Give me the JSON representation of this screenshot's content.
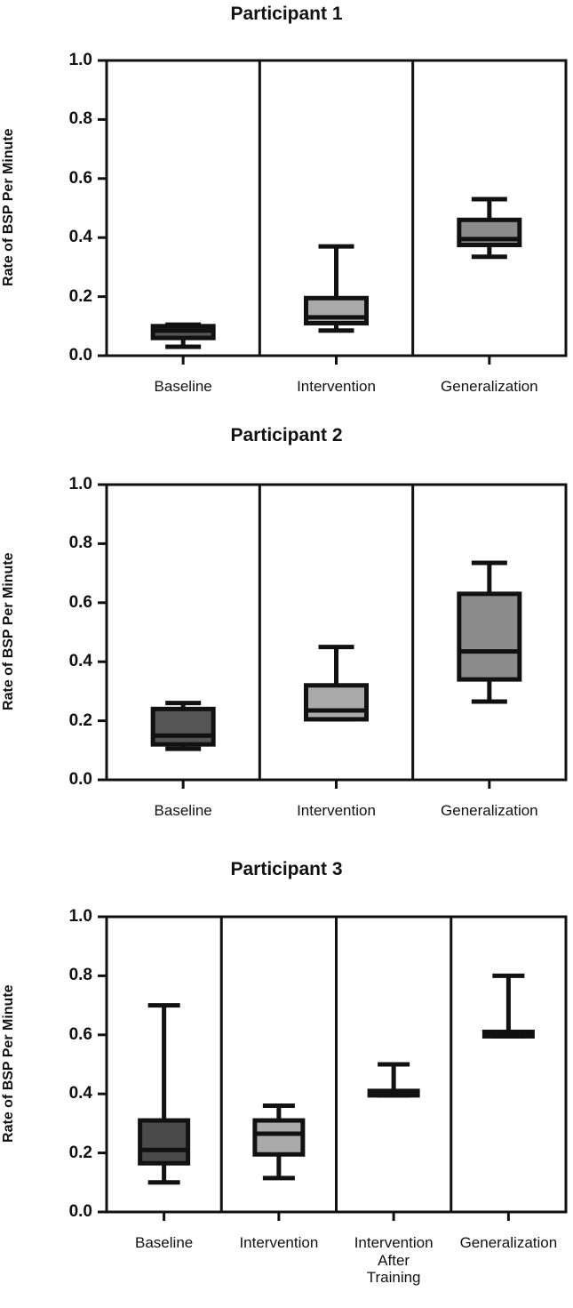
{
  "chart_data": [
    {
      "type": "box",
      "title": "Participant 1",
      "ylabel": "Rate of BSP Per Minute",
      "categories": [
        "Baseline",
        "Intervention",
        "Generalization"
      ],
      "boxes": [
        {
          "min": 0.03,
          "q1": 0.06,
          "median": 0.085,
          "q3": 0.1,
          "max": 0.105
        },
        {
          "min": 0.085,
          "q1": 0.11,
          "median": 0.13,
          "q3": 0.195,
          "max": 0.37
        },
        {
          "min": 0.335,
          "q1": 0.375,
          "median": 0.395,
          "q3": 0.46,
          "max": 0.53
        }
      ],
      "colors": [
        "#555555",
        "#aaaaaa",
        "#8c8c8c"
      ],
      "ylim": [
        0,
        1
      ],
      "yticks": [
        {
          "value": 0,
          "label": "0.0"
        },
        0.2,
        0.4,
        0.6,
        0.8,
        {
          "value": 1,
          "label": "1.0"
        }
      ]
    },
    {
      "type": "box",
      "title": "Participant 2",
      "ylabel": "Rate of BSP Per Minute",
      "categories": [
        "Baseline",
        "Intervention",
        "Generalization"
      ],
      "boxes": [
        {
          "min": 0.105,
          "q1": 0.12,
          "median": 0.15,
          "q3": 0.24,
          "max": 0.26
        },
        {
          "min": 0.205,
          "q1": 0.205,
          "median": 0.235,
          "q3": 0.32,
          "max": 0.45
        },
        {
          "min": 0.265,
          "q1": 0.34,
          "median": 0.435,
          "q3": 0.63,
          "max": 0.735
        }
      ],
      "colors": [
        "#555555",
        "#aaaaaa",
        "#8c8c8c"
      ],
      "ylim": [
        0,
        1
      ],
      "yticks": [
        {
          "value": 0,
          "label": "0.0"
        },
        0.2,
        0.4,
        0.6,
        0.8,
        {
          "value": 1,
          "label": "1.0"
        }
      ]
    },
    {
      "type": "box",
      "title": "Participant 3",
      "ylabel": "Rate of BSP Per Minute",
      "categories": [
        "Baseline",
        "Intervention",
        "Intervention\nAfter\nTraining",
        "Generalization"
      ],
      "boxes": [
        {
          "min": 0.1,
          "q1": 0.165,
          "median": 0.21,
          "q3": 0.31,
          "max": 0.7
        },
        {
          "min": 0.115,
          "q1": 0.195,
          "median": 0.265,
          "q3": 0.31,
          "max": 0.36
        },
        {
          "min": 0.395,
          "q1": 0.395,
          "median": 0.4,
          "q3": 0.41,
          "max": 0.5
        },
        {
          "min": 0.595,
          "q1": 0.595,
          "median": 0.6,
          "q3": 0.61,
          "max": 0.8
        }
      ],
      "colors": [
        "#4a4a4a",
        "#aaaaaa",
        "#8c8c8c",
        "#8c8c8c"
      ],
      "ylim": [
        0,
        1
      ],
      "yticks": [
        {
          "value": 0,
          "label": "0.0"
        },
        0.2,
        0.4,
        0.6,
        0.8,
        {
          "value": 1,
          "label": "1.0"
        }
      ]
    }
  ]
}
